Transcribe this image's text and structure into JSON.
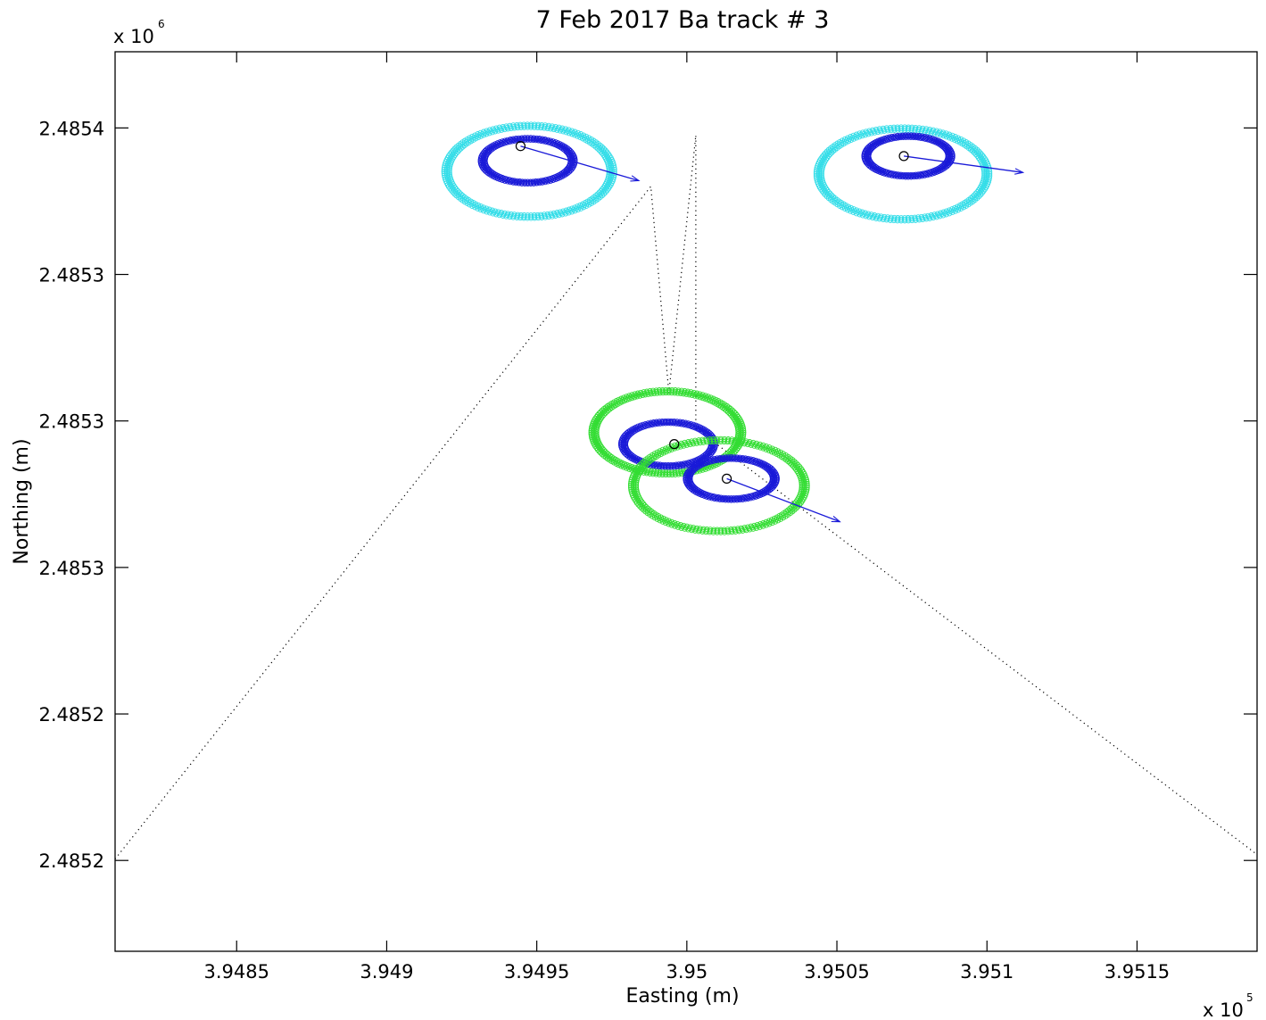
{
  "chart_data": {
    "type": "scatter",
    "title": "7 Feb 2017 Ba track # 3",
    "xlabel": "Easting (m)",
    "ylabel": "Northing (m)",
    "x_exponent": "x 10",
    "x_exponent_power": "5",
    "y_exponent": "x 10",
    "y_exponent_power": "6",
    "xlim": [
      394809.5,
      395190
    ],
    "ylim": [
      2485239,
      2485546
    ],
    "xticks": [
      394850,
      394900,
      394950,
      395000,
      395050,
      395100,
      395150
    ],
    "xtick_labels": [
      "3.9485",
      "3.949",
      "3.9495",
      "3.95",
      "3.9505",
      "3.951",
      "3.9515"
    ],
    "yticks": [
      2485520,
      2485470,
      2485420,
      2485370,
      2485320,
      2485270
    ],
    "ytick_labels": [
      "2.4854",
      "2.4853",
      "2.4853",
      "2.4853",
      "2.4852",
      "2.4852"
    ],
    "grid": false,
    "dotted_path": [
      [
        394809.5,
        2485270.5
      ],
      [
        394988,
        2485500
      ],
      [
        394994,
        2485429.5
      ],
      [
        395003,
        2485517.5
      ],
      [
        395003,
        2485417.5
      ],
      [
        395190,
        2485272
      ]
    ],
    "positions": [
      {
        "x": 394944.6,
        "y": 2485513.8,
        "arrow_to": [
          394984,
          2485502
        ],
        "outer_color": "#33dde8",
        "outer_center": [
          394947.5,
          2485505.2
        ],
        "outer_r": [
          27.5,
          15.5
        ],
        "inner_color": "#1a1ad8",
        "inner_center": [
          394947,
          2485508.8
        ],
        "inner_r": [
          15,
          7.5
        ]
      },
      {
        "x": 395072.3,
        "y": 2485510.4,
        "arrow_to": [
          395112,
          2485504.8
        ],
        "outer_color": "#33dde8",
        "outer_center": [
          395072,
          2485504.3
        ],
        "outer_r": [
          28,
          15.5
        ],
        "inner_color": "#1a1ad8",
        "inner_center": [
          395073.8,
          2485510.4
        ],
        "inner_r": [
          14,
          6.8
        ]
      },
      {
        "x": 394995.8,
        "y": 2485412.1,
        "arrow_to": null,
        "outer_color": "#33dd33",
        "outer_center": [
          394993.5,
          2485416.1
        ],
        "outer_r": [
          24.5,
          14
        ],
        "inner_color": "#1a1ad8",
        "inner_center": [
          394993.8,
          2485412.1
        ],
        "inner_r": [
          15,
          7.5
        ]
      },
      {
        "x": 395013.3,
        "y": 2485400.3,
        "arrow_to": [
          395051,
          2485385.6
        ],
        "outer_color": "#33dd33",
        "outer_center": [
          395010.7,
          2485397.9
        ],
        "outer_r": [
          28.5,
          15.5
        ],
        "inner_color": "#1a1ad8",
        "inner_center": [
          395014.8,
          2485400.3
        ],
        "inner_r": [
          14.5,
          7
        ]
      }
    ]
  }
}
